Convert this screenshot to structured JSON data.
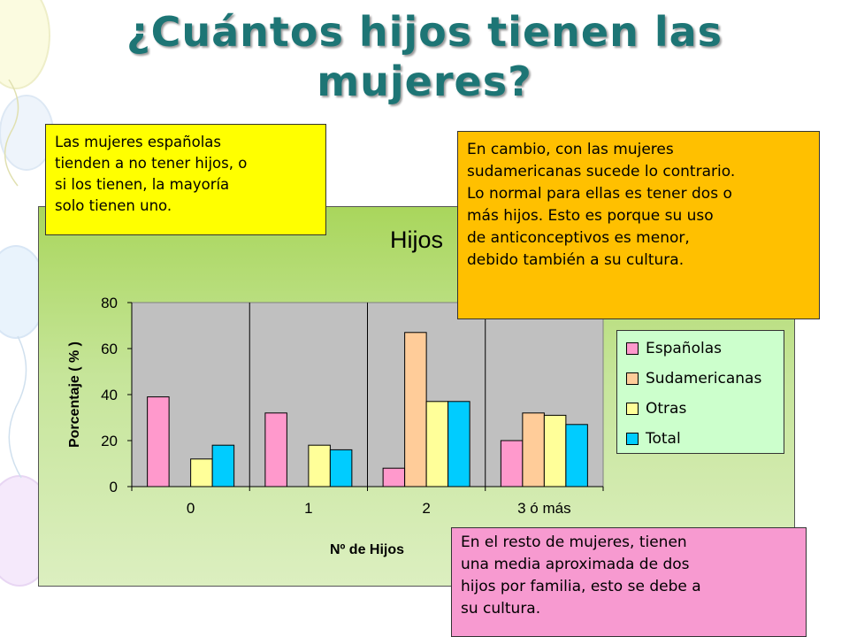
{
  "slide": {
    "title_line1": "¿Cuántos hijos tienen las",
    "title_line2": "mujeres?"
  },
  "callouts": {
    "espanolas": [
      "Las mujeres españolas",
      "tienden a no tener hijos, o",
      "si los tienen, la mayoría",
      "solo tienen uno."
    ],
    "sudamericanas": [
      "En cambio, con las mujeres",
      "sudamericanas sucede lo contrario.",
      "Lo normal para ellas es tener dos o",
      "más hijos. Esto es porque su uso",
      "de anticonceptivos es menor,",
      "debido también a su cultura."
    ],
    "resto": [
      "En el resto de mujeres, tienen",
      "una media aproximada de dos",
      "hijos por familia, esto se debe a",
      "su cultura."
    ]
  },
  "chart_data": {
    "type": "bar",
    "title": "Hijos",
    "xlabel": "Nº de Hijos",
    "ylabel": "Porcentaje ( % )",
    "categories": [
      "0",
      "1",
      "2",
      "3 ó más"
    ],
    "ylim": [
      0,
      80
    ],
    "yticks": [
      "0",
      "20",
      "40",
      "60",
      "80"
    ],
    "grid": "vertical",
    "legend_position": "right",
    "series": [
      {
        "name": "Españolas",
        "color": "#ff99cc",
        "values": [
          39,
          32,
          8,
          20
        ]
      },
      {
        "name": "Sudamericanas",
        "color": "#ffcc99",
        "values": [
          0,
          0,
          67,
          32
        ]
      },
      {
        "name": "Otras",
        "color": "#ffff99",
        "values": [
          12,
          18,
          37,
          31
        ]
      },
      {
        "name": "Total",
        "color": "#00ccff",
        "values": [
          18,
          16,
          37,
          27
        ]
      }
    ],
    "plot_bg": "#c0c0c0"
  }
}
